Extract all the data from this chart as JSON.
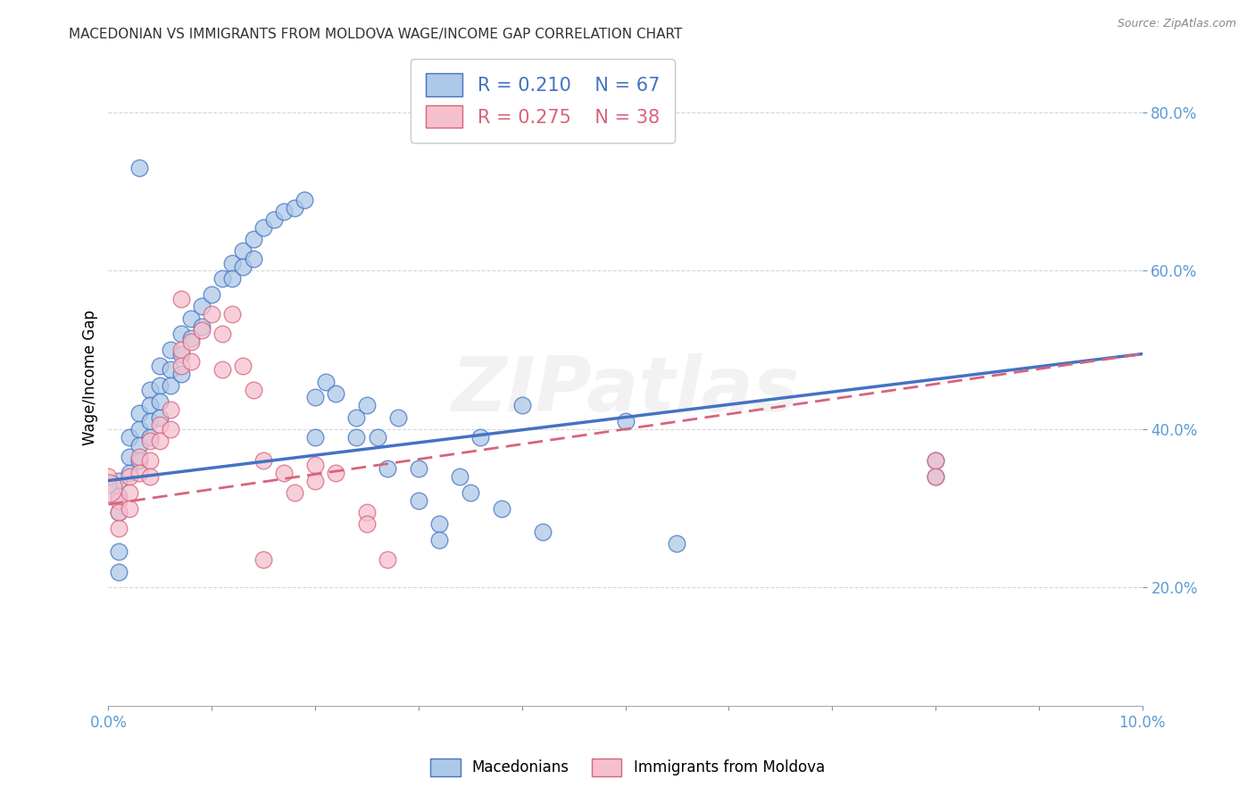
{
  "title": "MACEDONIAN VS IMMIGRANTS FROM MOLDOVA WAGE/INCOME GAP CORRELATION CHART",
  "source": "Source: ZipAtlas.com",
  "ylabel": "Wage/Income Gap",
  "xlim": [
    0.0,
    0.1
  ],
  "ylim": [
    0.05,
    0.88
  ],
  "y_ticks": [
    0.2,
    0.4,
    0.6,
    0.8
  ],
  "y_tick_labels": [
    "20.0%",
    "40.0%",
    "60.0%",
    "80.0%"
  ],
  "x_ticks": [
    0.0,
    0.01,
    0.02,
    0.03,
    0.04,
    0.05,
    0.06,
    0.07,
    0.08,
    0.09,
    0.1
  ],
  "x_tick_labels": [
    "0.0%",
    "",
    "",
    "",
    "",
    "",
    "",
    "",
    "",
    "",
    "10.0%"
  ],
  "blue_color": "#adc9e8",
  "pink_color": "#f5c0ce",
  "blue_edge_color": "#4472c4",
  "pink_edge_color": "#d9637a",
  "blue_line_color": "#4472c4",
  "pink_line_color": "#d9637a",
  "legend_label1": "Macedonians",
  "legend_label2": "Immigrants from Moldova",
  "watermark": "ZIPatlas",
  "tick_color": "#5b9bd5",
  "blue_scatter": [
    [
      0.001,
      0.335
    ],
    [
      0.001,
      0.315
    ],
    [
      0.001,
      0.295
    ],
    [
      0.002,
      0.39
    ],
    [
      0.002,
      0.365
    ],
    [
      0.002,
      0.345
    ],
    [
      0.003,
      0.42
    ],
    [
      0.003,
      0.4
    ],
    [
      0.003,
      0.38
    ],
    [
      0.003,
      0.36
    ],
    [
      0.004,
      0.45
    ],
    [
      0.004,
      0.43
    ],
    [
      0.004,
      0.41
    ],
    [
      0.004,
      0.39
    ],
    [
      0.005,
      0.48
    ],
    [
      0.005,
      0.455
    ],
    [
      0.005,
      0.435
    ],
    [
      0.005,
      0.415
    ],
    [
      0.006,
      0.5
    ],
    [
      0.006,
      0.475
    ],
    [
      0.006,
      0.455
    ],
    [
      0.007,
      0.52
    ],
    [
      0.007,
      0.495
    ],
    [
      0.007,
      0.47
    ],
    [
      0.008,
      0.54
    ],
    [
      0.008,
      0.515
    ],
    [
      0.009,
      0.555
    ],
    [
      0.009,
      0.53
    ],
    [
      0.01,
      0.57
    ],
    [
      0.011,
      0.59
    ],
    [
      0.012,
      0.61
    ],
    [
      0.012,
      0.59
    ],
    [
      0.013,
      0.625
    ],
    [
      0.013,
      0.605
    ],
    [
      0.014,
      0.64
    ],
    [
      0.014,
      0.615
    ],
    [
      0.015,
      0.655
    ],
    [
      0.016,
      0.665
    ],
    [
      0.017,
      0.675
    ],
    [
      0.018,
      0.68
    ],
    [
      0.019,
      0.69
    ],
    [
      0.02,
      0.44
    ],
    [
      0.02,
      0.39
    ],
    [
      0.021,
      0.46
    ],
    [
      0.022,
      0.445
    ],
    [
      0.024,
      0.415
    ],
    [
      0.024,
      0.39
    ],
    [
      0.025,
      0.43
    ],
    [
      0.026,
      0.39
    ],
    [
      0.027,
      0.35
    ],
    [
      0.028,
      0.415
    ],
    [
      0.03,
      0.35
    ],
    [
      0.03,
      0.31
    ],
    [
      0.032,
      0.28
    ],
    [
      0.032,
      0.26
    ],
    [
      0.034,
      0.34
    ],
    [
      0.035,
      0.32
    ],
    [
      0.036,
      0.39
    ],
    [
      0.038,
      0.3
    ],
    [
      0.04,
      0.43
    ],
    [
      0.042,
      0.27
    ],
    [
      0.05,
      0.41
    ],
    [
      0.055,
      0.255
    ],
    [
      0.08,
      0.36
    ],
    [
      0.08,
      0.34
    ],
    [
      0.003,
      0.73
    ],
    [
      0.001,
      0.245
    ],
    [
      0.001,
      0.22
    ],
    [
      0.0,
      0.33
    ]
  ],
  "pink_scatter": [
    [
      0.001,
      0.31
    ],
    [
      0.001,
      0.295
    ],
    [
      0.001,
      0.275
    ],
    [
      0.002,
      0.34
    ],
    [
      0.002,
      0.32
    ],
    [
      0.002,
      0.3
    ],
    [
      0.003,
      0.365
    ],
    [
      0.003,
      0.345
    ],
    [
      0.004,
      0.385
    ],
    [
      0.004,
      0.36
    ],
    [
      0.004,
      0.34
    ],
    [
      0.005,
      0.405
    ],
    [
      0.005,
      0.385
    ],
    [
      0.006,
      0.425
    ],
    [
      0.006,
      0.4
    ],
    [
      0.007,
      0.565
    ],
    [
      0.007,
      0.5
    ],
    [
      0.007,
      0.48
    ],
    [
      0.008,
      0.51
    ],
    [
      0.008,
      0.485
    ],
    [
      0.009,
      0.525
    ],
    [
      0.01,
      0.545
    ],
    [
      0.011,
      0.52
    ],
    [
      0.011,
      0.475
    ],
    [
      0.012,
      0.545
    ],
    [
      0.013,
      0.48
    ],
    [
      0.014,
      0.45
    ],
    [
      0.015,
      0.36
    ],
    [
      0.015,
      0.235
    ],
    [
      0.017,
      0.345
    ],
    [
      0.018,
      0.32
    ],
    [
      0.02,
      0.355
    ],
    [
      0.02,
      0.335
    ],
    [
      0.022,
      0.345
    ],
    [
      0.025,
      0.295
    ],
    [
      0.025,
      0.28
    ],
    [
      0.027,
      0.235
    ],
    [
      0.08,
      0.36
    ],
    [
      0.08,
      0.34
    ],
    [
      0.0,
      0.34
    ]
  ]
}
